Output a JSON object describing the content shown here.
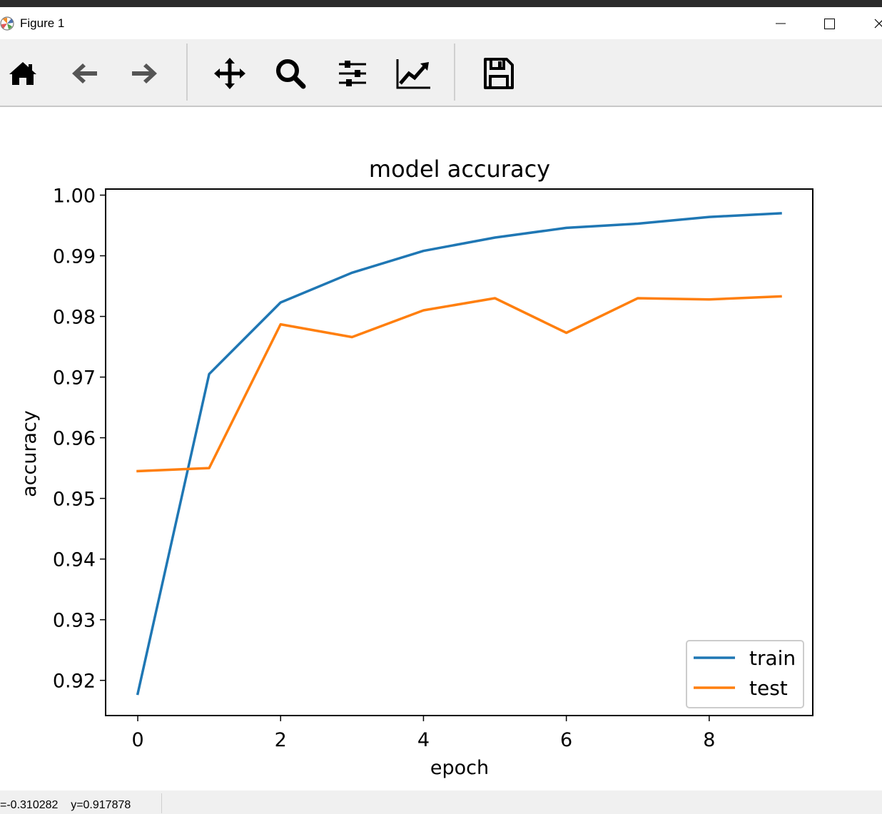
{
  "window": {
    "title": "Figure 1"
  },
  "toolbar": {
    "buttons": [
      {
        "icon": "home-icon"
      },
      {
        "icon": "back-arrow-icon"
      },
      {
        "icon": "forward-arrow-icon"
      },
      {
        "icon": "pan-move-icon"
      },
      {
        "icon": "zoom-magnifier-icon"
      },
      {
        "icon": "subplots-sliders-icon"
      },
      {
        "icon": "axes-line-chart-icon"
      },
      {
        "icon": "save-floppy-icon"
      }
    ]
  },
  "status": {
    "coords": "=-0.310282    y=0.917878"
  },
  "chart_data": {
    "type": "line",
    "title": "model accuracy",
    "xlabel": "epoch",
    "ylabel": "accuracy",
    "xlim": [
      -0.45,
      9.45
    ],
    "ylim": [
      0.9142,
      1.001
    ],
    "xticks": [
      0,
      2,
      4,
      6,
      8
    ],
    "xtick_labels": [
      "0",
      "2",
      "4",
      "6",
      "8"
    ],
    "yticks": [
      0.92,
      0.93,
      0.94,
      0.95,
      0.96,
      0.97,
      0.98,
      0.99,
      1.0
    ],
    "ytick_labels": [
      "0.92",
      "0.93",
      "0.94",
      "0.95",
      "0.96",
      "0.97",
      "0.98",
      "0.99",
      "1.00"
    ],
    "x": [
      0,
      1,
      2,
      3,
      4,
      5,
      6,
      7,
      8,
      9
    ],
    "series": [
      {
        "name": "train",
        "color": "#1f77b4",
        "values": [
          0.9178,
          0.9705,
          0.9823,
          0.9872,
          0.9908,
          0.993,
          0.9946,
          0.9953,
          0.9964,
          0.997
        ]
      },
      {
        "name": "test",
        "color": "#ff7f0e",
        "values": [
          0.9545,
          0.955,
          0.9787,
          0.9766,
          0.981,
          0.983,
          0.9773,
          0.983,
          0.9828,
          0.9833
        ]
      }
    ],
    "grid": false,
    "legend_position": "lower-right"
  }
}
